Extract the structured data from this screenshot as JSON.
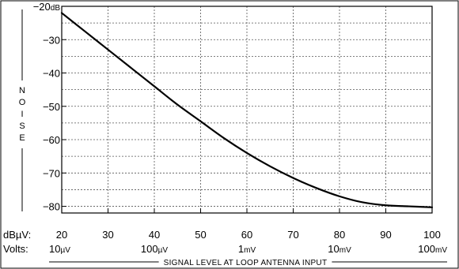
{
  "chart_data": {
    "type": "line",
    "ylabel": "NOISE",
    "xlabel": "SIGNAL LEVEL AT LOOP ANTENNA INPUT",
    "x_axis_row_label_db": "dBµV:",
    "x_axis_row_label_volts": "Volts:",
    "xlim": [
      20,
      100
    ],
    "ylim": [
      -82,
      -20
    ],
    "y_ticks": [
      -80,
      -70,
      -60,
      -50,
      -40,
      -30,
      -20
    ],
    "y_tick_labels": [
      "−80",
      "−70",
      "−60",
      "−50",
      "−40",
      "−30",
      "−20"
    ],
    "y_top_unit": "dB",
    "x_ticks": [
      20,
      30,
      40,
      50,
      60,
      70,
      80,
      90,
      100
    ],
    "x_tick_labels": [
      "20",
      "30",
      "40",
      "50",
      "60",
      "70",
      "80",
      "90",
      "100"
    ],
    "volt_labels": [
      {
        "at": 20,
        "value": "10",
        "unit": "µV"
      },
      {
        "at": 40,
        "value": "100",
        "unit": "µV"
      },
      {
        "at": 60,
        "value": "1",
        "unit": "mV"
      },
      {
        "at": 80,
        "value": "10",
        "unit": "mV"
      },
      {
        "at": 100,
        "value": "100",
        "unit": "mV"
      }
    ],
    "grid": true,
    "series": [
      {
        "x": [
          20,
          25,
          30,
          35,
          40,
          45,
          50,
          55,
          60,
          65,
          70,
          75,
          80,
          85,
          90,
          95,
          100
        ],
        "y": [
          -22,
          -27.5,
          -33,
          -38.5,
          -44,
          -49.5,
          -54.5,
          -59.5,
          -64,
          -68,
          -71.5,
          -74.5,
          -77,
          -78.8,
          -79.7,
          -80,
          -80.3
        ]
      }
    ]
  }
}
